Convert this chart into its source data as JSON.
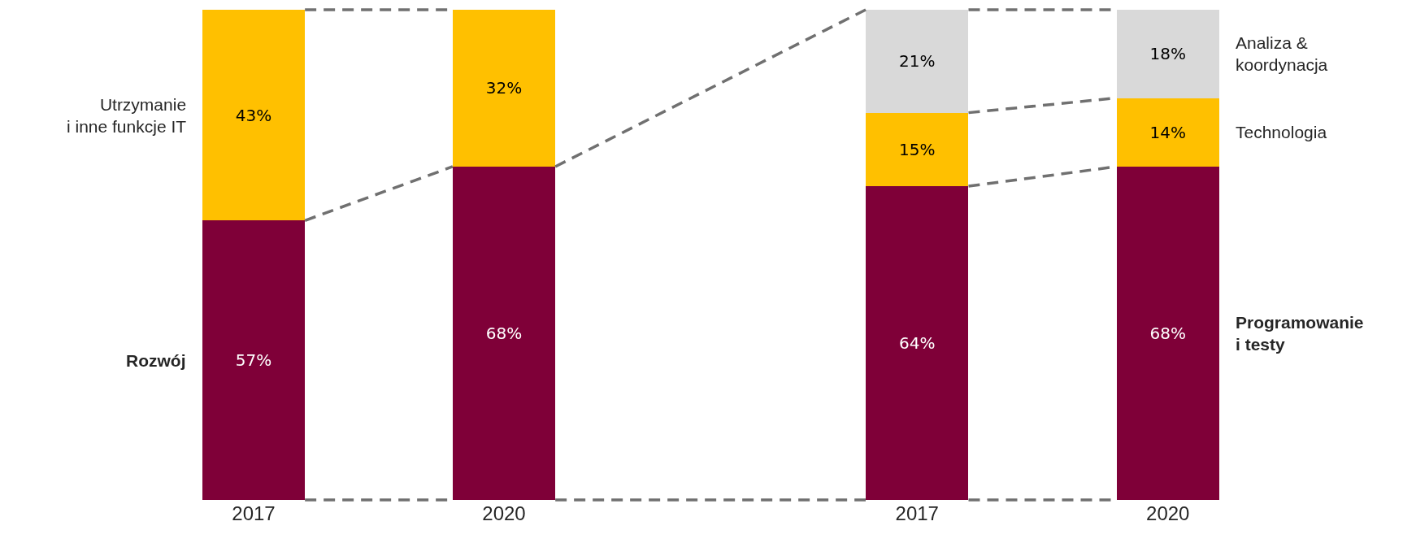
{
  "chart_data": [
    {
      "type": "bar",
      "stacked": true,
      "categories": [
        "2017",
        "2020"
      ],
      "tick_labels": "x",
      "series": [
        {
          "name": "Rozwój",
          "color": "#7f0038",
          "values": [
            57,
            68
          ],
          "value_labels": [
            "57%",
            "68%"
          ]
        },
        {
          "name": "Utrzymanie\ni inne funkcje IT",
          "color": "#ffc000",
          "values": [
            43,
            32
          ],
          "value_labels": [
            "43%",
            "32%"
          ]
        }
      ]
    },
    {
      "type": "bar",
      "stacked": true,
      "categories": [
        "2017",
        "2020"
      ],
      "tick_labels": "x",
      "series": [
        {
          "name": "Programowanie\ni testy",
          "color": "#7f0038",
          "values": [
            64,
            68
          ],
          "value_labels": [
            "64%",
            "68%"
          ]
        },
        {
          "name": "Technologia",
          "color": "#ffc000",
          "values": [
            15,
            14
          ],
          "value_labels": [
            "15%",
            "14%"
          ]
        },
        {
          "name": "Analiza &\nkoordynacja",
          "color": "#d9d9d9",
          "values": [
            21,
            18
          ],
          "value_labels": [
            "21%",
            "18%"
          ]
        }
      ]
    }
  ]
}
